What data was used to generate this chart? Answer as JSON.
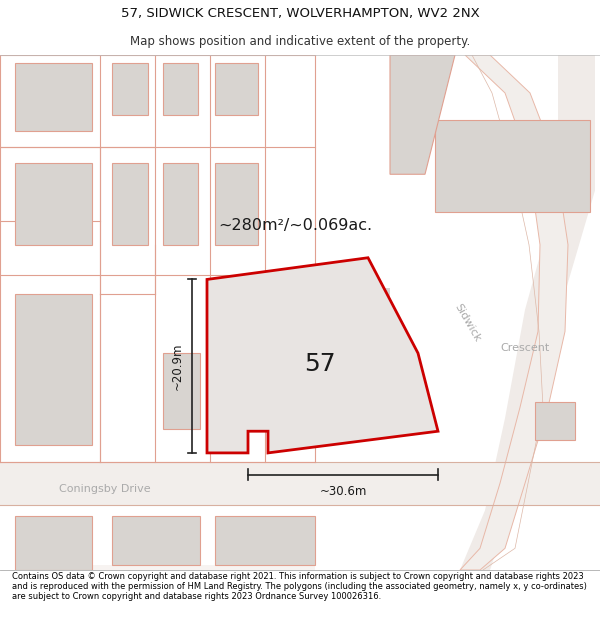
{
  "title_line1": "57, SIDWICK CRESCENT, WOLVERHAMPTON, WV2 2NX",
  "title_line2": "Map shows position and indicative extent of the property.",
  "footer_text": "Contains OS data © Crown copyright and database right 2021. This information is subject to Crown copyright and database rights 2023 and is reproduced with the permission of HM Land Registry. The polygons (including the associated geometry, namely x, y co-ordinates) are subject to Crown copyright and database rights 2023 Ordnance Survey 100026316.",
  "area_label": "~280m²/~0.069ac.",
  "number_label": "57",
  "width_label": "~30.6m",
  "height_label": "~20.9m",
  "street_label1": "Sidwick",
  "street_label2": "Crescent",
  "drive_label": "Coningsby Drive",
  "bg_color": "#ffffff",
  "map_bg": "#f7f3f1",
  "building_fill": "#d8d4d0",
  "plot_fill": "#e8e4e2",
  "plot_outline": "#cc0000",
  "road_outline_color": "#e0a090",
  "road_fill_color": "#f0e8e4"
}
